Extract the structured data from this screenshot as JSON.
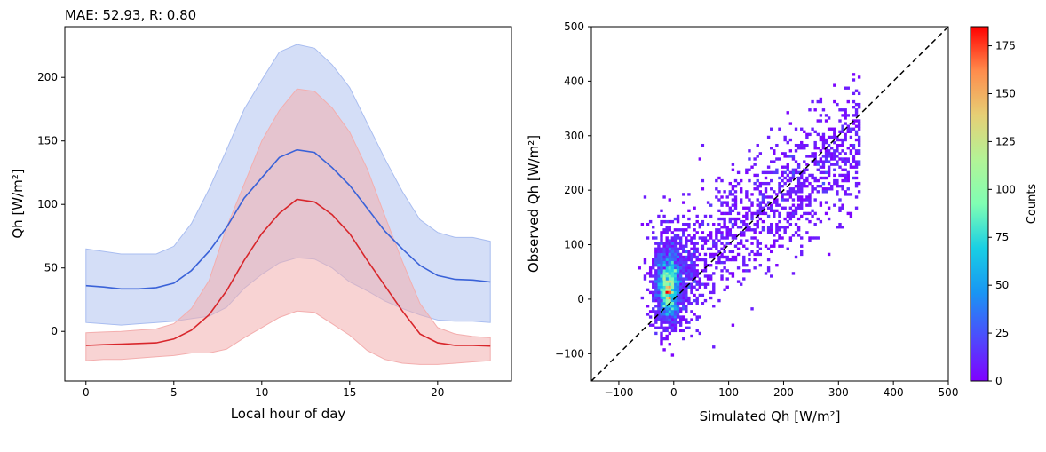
{
  "chart_data": [
    {
      "type": "line",
      "title": "MAE: 52.93, R: 0.80",
      "xlabel": "Local hour of day",
      "ylabel": "Qh [W/m²]",
      "xlim": [
        -1.2,
        24.2
      ],
      "ylim": [
        -39,
        240
      ],
      "xticks": [
        0,
        5,
        10,
        15,
        20
      ],
      "yticks": [
        0,
        50,
        100,
        150,
        200
      ],
      "grid": false,
      "x": [
        0,
        1,
        2,
        3,
        4,
        5,
        6,
        7,
        8,
        9,
        10,
        11,
        12,
        13,
        14,
        15,
        16,
        17,
        18,
        19,
        20,
        21,
        22,
        23
      ],
      "series": [
        {
          "color": "#3a62d8",
          "values": [
            36,
            35,
            33.5,
            33.5,
            34.5,
            38,
            48,
            63,
            82,
            105,
            121,
            137,
            143,
            141,
            129,
            115,
            97,
            79,
            65,
            52,
            44,
            41,
            40.5,
            39
          ],
          "band_upper": [
            65,
            63,
            61,
            61,
            61,
            67,
            85,
            112,
            143,
            175,
            198,
            220,
            226,
            223,
            210,
            192,
            164,
            136,
            110,
            88,
            78,
            74,
            74,
            71
          ],
          "band_lower": [
            7,
            6,
            5,
            6,
            7,
            8,
            10,
            12,
            19,
            34,
            45,
            54,
            58,
            57,
            50,
            39,
            32,
            24,
            18,
            13,
            9,
            8,
            8,
            7
          ],
          "fill_color": "#a9bdf0"
        },
        {
          "color": "#d8262b",
          "values": [
            -11,
            -10.5,
            -10,
            -9.5,
            -9,
            -6,
            1,
            13,
            32,
            56,
            77,
            93,
            104,
            102,
            92,
            77,
            56,
            36,
            16,
            -2,
            -9,
            -11,
            -11,
            -11.5
          ],
          "band_upper": [
            -1,
            -0.5,
            0,
            1,
            2,
            6,
            18,
            40,
            82,
            116,
            150,
            174,
            191,
            189,
            176,
            157,
            128,
            91,
            55,
            22,
            3,
            -2,
            -4,
            -5
          ],
          "band_lower": [
            -23,
            -22,
            -22,
            -21,
            -20,
            -19,
            -17,
            -17,
            -14,
            -5,
            3,
            11,
            16,
            15,
            6,
            -3,
            -15,
            -22,
            -25,
            -26,
            -26,
            -25,
            -24,
            -23
          ],
          "fill_color": "#f3aeae"
        }
      ]
    },
    {
      "type": "heatmap",
      "subtype": "2d-histogram",
      "xlabel": "Simulated Qh [W/m²]",
      "ylabel": "Observed Qh [W/m²]",
      "xlim": [
        -150,
        500
      ],
      "ylim": [
        -150,
        500
      ],
      "xticks": [
        -100,
        0,
        100,
        200,
        300,
        400,
        500
      ],
      "yticks": [
        -100,
        0,
        100,
        200,
        300,
        400,
        500
      ],
      "tick_labels": [
        "−100",
        "0",
        "100",
        "200",
        "300",
        "400",
        "500"
      ],
      "diagonal": "1:1 dashed black line",
      "colormap": "rainbow",
      "colorbar": {
        "label": "Counts",
        "min": 0,
        "max": 185,
        "ticks": [
          0,
          25,
          50,
          75,
          100,
          125,
          150,
          175
        ]
      },
      "density_peak": {
        "x": -10,
        "y": 15,
        "count": 185
      },
      "cloud_extent": {
        "x": [
          -80,
          340
        ],
        "y": [
          -130,
          460
        ]
      }
    }
  ]
}
